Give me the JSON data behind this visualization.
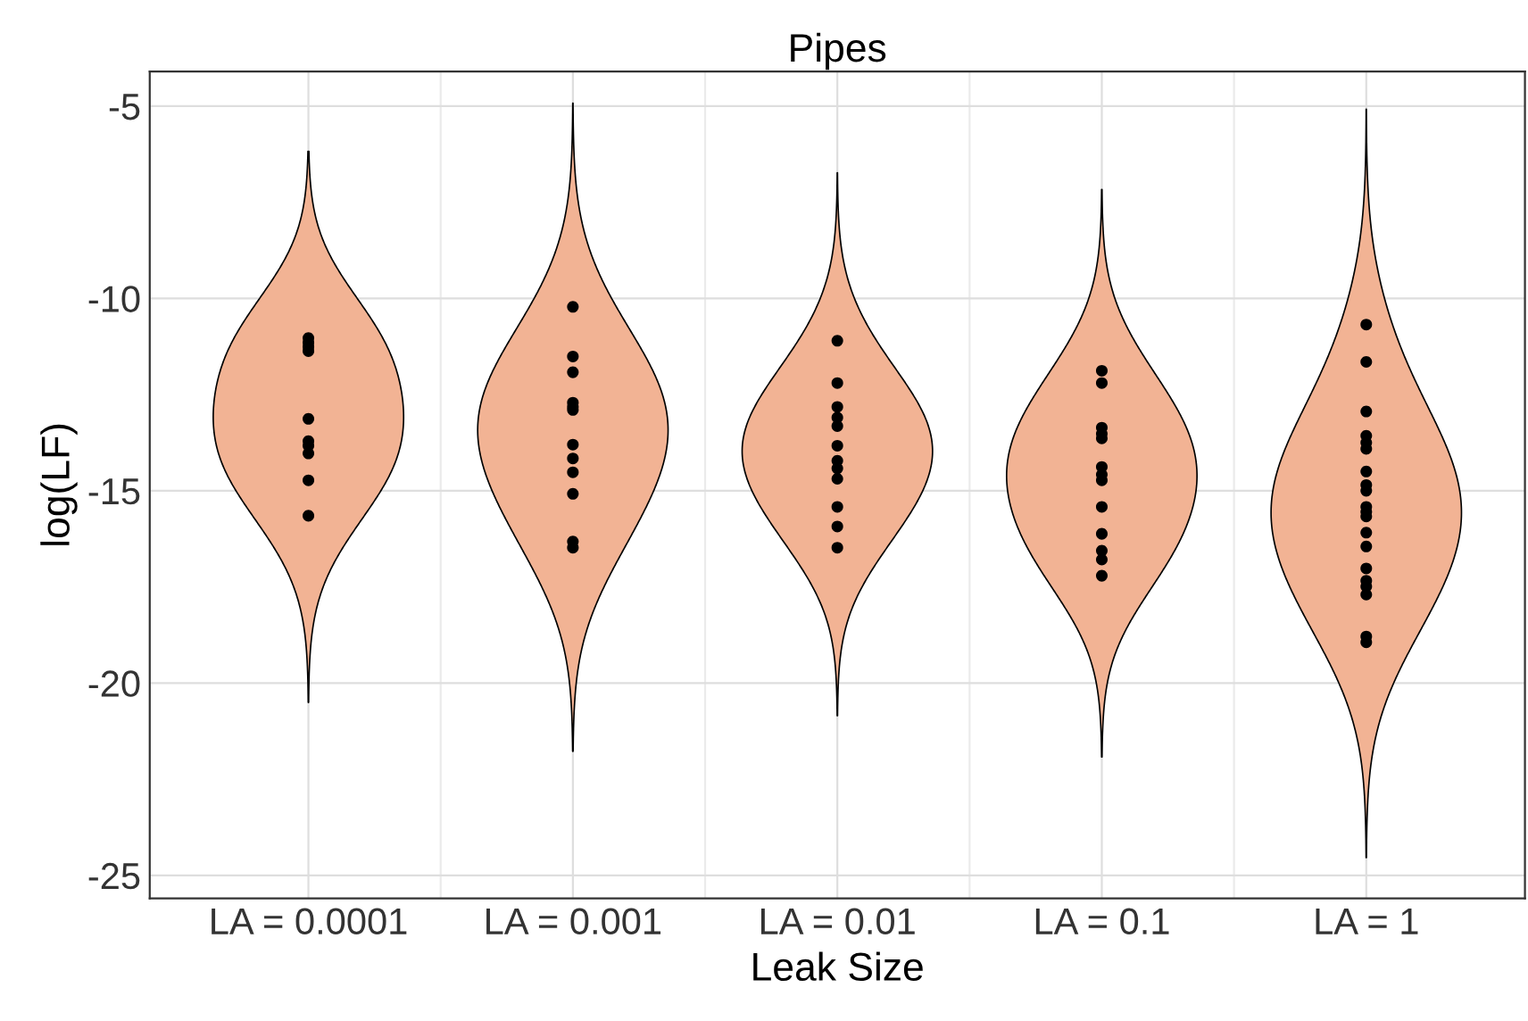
{
  "chart_data": {
    "type": "scatter",
    "title": "Pipes",
    "xlabel": "Leak Size",
    "ylabel": "log(LF)",
    "categories": [
      "LA = 0.0001",
      "LA = 0.001",
      "LA = 0.01",
      "LA = 0.1",
      "LA = 1"
    ],
    "ylim": [
      -25.6,
      -4.1
    ],
    "yticks": [
      -25,
      -20,
      -15,
      -10,
      -5
    ],
    "grid": true,
    "series": [
      {
        "color": "#000000",
        "marker": "circle",
        "x": [
          "LA = 0.0001",
          "LA = 0.0001",
          "LA = 0.0001",
          "LA = 0.0001",
          "LA = 0.0001",
          "LA = 0.0001",
          "LA = 0.0001",
          "LA = 0.0001",
          "LA = 0.0001",
          "LA = 0.0001",
          "LA = 0.001",
          "LA = 0.001",
          "LA = 0.001",
          "LA = 0.001",
          "LA = 0.001",
          "LA = 0.001",
          "LA = 0.001",
          "LA = 0.001",
          "LA = 0.001",
          "LA = 0.001",
          "LA = 0.001",
          "LA = 0.001",
          "LA = 0.01",
          "LA = 0.01",
          "LA = 0.01",
          "LA = 0.01",
          "LA = 0.01",
          "LA = 0.01",
          "LA = 0.01",
          "LA = 0.01",
          "LA = 0.01",
          "LA = 0.01",
          "LA = 0.01",
          "LA = 0.01",
          "LA = 0.1",
          "LA = 0.1",
          "LA = 0.1",
          "LA = 0.1",
          "LA = 0.1",
          "LA = 0.1",
          "LA = 0.1",
          "LA = 0.1",
          "LA = 0.1",
          "LA = 0.1",
          "LA = 0.1",
          "LA = 0.1",
          "LA = 0.1",
          "LA = 1",
          "LA = 1",
          "LA = 1",
          "LA = 1",
          "LA = 1",
          "LA = 1",
          "LA = 1",
          "LA = 1",
          "LA = 1",
          "LA = 1",
          "LA = 1",
          "LA = 1",
          "LA = 1",
          "LA = 1",
          "LA = 1",
          "LA = 1",
          "LA = 1",
          "LA = 1",
          "LA = 1",
          "LA = 1"
        ],
        "values": [
          -11.03,
          -11.15,
          -11.26,
          -11.37,
          -13.13,
          -13.71,
          -13.83,
          -14.03,
          -14.73,
          -15.65,
          -10.22,
          -11.51,
          -11.92,
          -12.71,
          -12.82,
          -12.9,
          -13.8,
          -14.16,
          -14.52,
          -15.08,
          -16.32,
          -16.48,
          -11.1,
          -12.2,
          -12.82,
          -13.1,
          -13.32,
          -13.83,
          -14.22,
          -14.42,
          -14.69,
          -15.42,
          -15.93,
          -16.48,
          -11.88,
          -12.2,
          -13.36,
          -13.52,
          -13.64,
          -14.38,
          -14.58,
          -14.73,
          -15.42,
          -16.12,
          -16.56,
          -16.79,
          -17.21,
          -10.68,
          -11.65,
          -12.94,
          -13.57,
          -13.75,
          -13.91,
          -14.5,
          -14.85,
          -15.0,
          -15.42,
          -15.55,
          -15.67,
          -16.09,
          -16.45,
          -17.02,
          -17.34,
          -17.49,
          -17.7,
          -18.79,
          -18.94
        ]
      }
    ]
  }
}
